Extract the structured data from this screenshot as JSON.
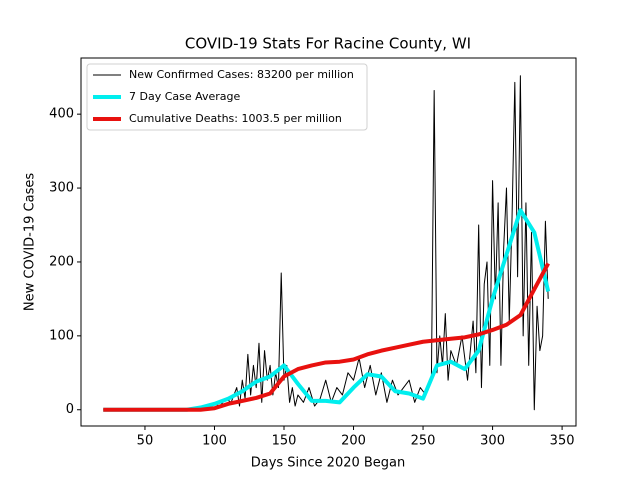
{
  "chart_data": {
    "type": "line",
    "title": "COVID-19 Stats For Racine County, WI",
    "x_label": "Days Since 2020 Began",
    "y_label": "New COVID-19 Cases",
    "xlim": [
      4,
      360
    ],
    "ylim": [
      -22,
      476
    ],
    "xticks": [
      50,
      100,
      150,
      200,
      250,
      300,
      350
    ],
    "yticks": [
      0,
      100,
      200,
      300,
      400
    ],
    "legend": "upper left",
    "series": [
      {
        "name": "New Confirmed Cases: 83200 per million",
        "color": "#000000",
        "width": 1,
        "x": [
          20,
          85,
          90,
          95,
          100,
          104,
          108,
          112,
          116,
          118,
          120,
          122,
          124,
          126,
          128,
          130,
          132,
          134,
          136,
          138,
          140,
          142,
          144,
          146,
          148,
          150,
          152,
          154,
          156,
          158,
          160,
          164,
          168,
          172,
          176,
          180,
          184,
          188,
          192,
          196,
          200,
          204,
          208,
          212,
          216,
          220,
          224,
          228,
          232,
          236,
          240,
          244,
          248,
          252,
          256,
          258,
          260,
          262,
          264,
          266,
          268,
          270,
          274,
          278,
          282,
          286,
          288,
          290,
          292,
          294,
          296,
          298,
          300,
          302,
          304,
          306,
          308,
          310,
          312,
          314,
          316,
          318,
          320,
          322,
          324,
          326,
          328,
          330,
          332,
          334,
          336,
          338,
          340
        ],
        "values": [
          0,
          0,
          5,
          2,
          8,
          5,
          15,
          10,
          30,
          5,
          40,
          15,
          75,
          20,
          60,
          30,
          90,
          10,
          80,
          40,
          60,
          20,
          50,
          30,
          185,
          40,
          60,
          10,
          30,
          5,
          20,
          10,
          30,
          5,
          15,
          40,
          10,
          30,
          20,
          50,
          40,
          70,
          30,
          60,
          20,
          50,
          10,
          40,
          20,
          30,
          40,
          10,
          30,
          20,
          40,
          432,
          50,
          100,
          60,
          130,
          40,
          80,
          60,
          100,
          40,
          120,
          50,
          250,
          30,
          170,
          200,
          60,
          310,
          150,
          280,
          60,
          220,
          300,
          120,
          260,
          443,
          180,
          452,
          100,
          280,
          60,
          240,
          0,
          140,
          80,
          100,
          255,
          150
        ]
      },
      {
        "name": "7 Day Case Average",
        "color": "#00eeee",
        "width": 4,
        "x": [
          20,
          30,
          40,
          50,
          60,
          70,
          80,
          90,
          100,
          110,
          120,
          130,
          140,
          150,
          160,
          170,
          180,
          190,
          200,
          210,
          220,
          230,
          240,
          250,
          260,
          270,
          280,
          290,
          300,
          310,
          320,
          330,
          340
        ],
        "values": [
          0,
          0,
          0,
          0,
          0,
          0,
          0,
          3,
          8,
          15,
          25,
          38,
          45,
          60,
          35,
          12,
          12,
          10,
          30,
          48,
          45,
          25,
          22,
          15,
          60,
          65,
          55,
          80,
          150,
          210,
          270,
          240,
          160
        ]
      },
      {
        "name": "Cumulative Deaths: 1003.5 per million",
        "color": "#e8110f",
        "width": 4,
        "x": [
          20,
          30,
          40,
          50,
          60,
          70,
          80,
          90,
          100,
          110,
          120,
          130,
          140,
          150,
          160,
          170,
          180,
          190,
          200,
          210,
          220,
          230,
          240,
          250,
          260,
          270,
          280,
          290,
          300,
          310,
          320,
          330,
          340
        ],
        "values": [
          0,
          0,
          0,
          0,
          0,
          0,
          0,
          0,
          2,
          8,
          12,
          16,
          22,
          45,
          55,
          60,
          64,
          65,
          68,
          75,
          80,
          84,
          88,
          92,
          94,
          96,
          98,
          102,
          108,
          115,
          128,
          163,
          198
        ]
      }
    ]
  }
}
